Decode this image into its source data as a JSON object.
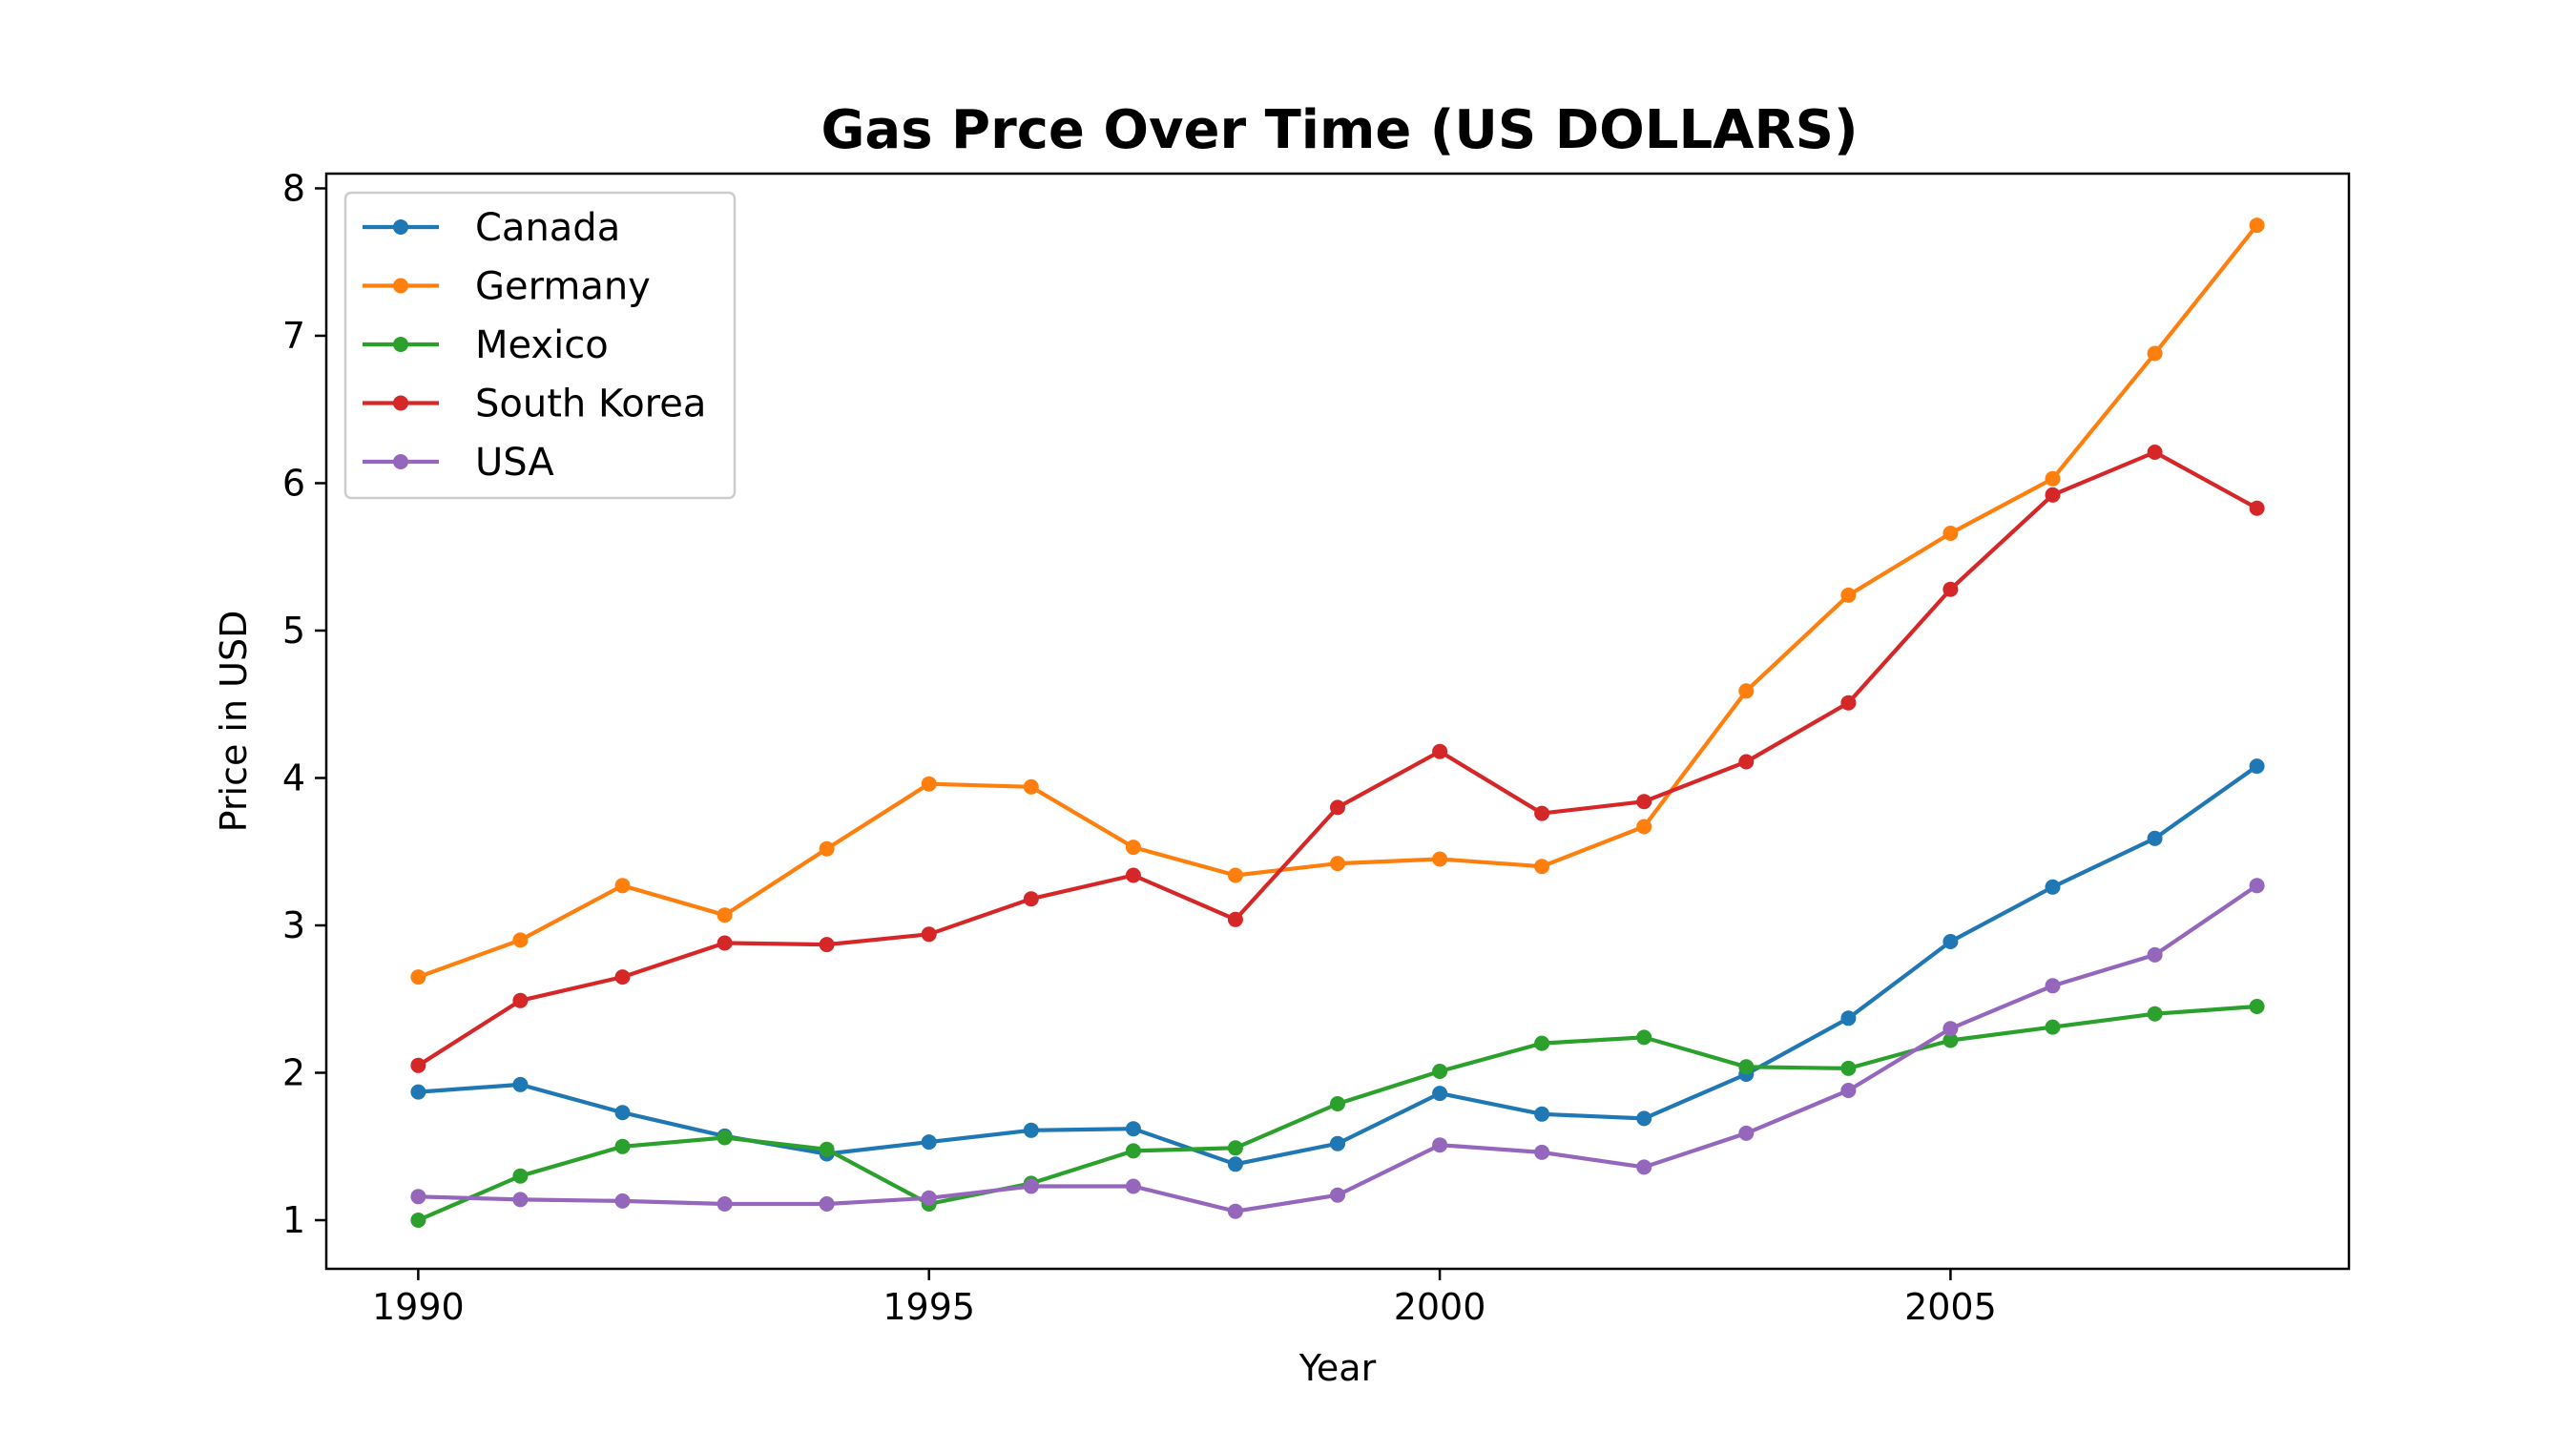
{
  "chart_data": {
    "type": "line",
    "title": "Gas Prce Over Time (US DOLLARS)",
    "xlabel": "Year",
    "ylabel": "Price in USD",
    "xlim": [
      1989.1,
      2008.9
    ],
    "ylim": [
      0.67,
      8.1
    ],
    "xticks": [
      1990,
      1995,
      2000,
      2005
    ],
    "yticks": [
      1,
      2,
      3,
      4,
      5,
      6,
      7,
      8
    ],
    "grid": false,
    "legend_position": "upper-left",
    "x": [
      1990,
      1991,
      1992,
      1993,
      1994,
      1995,
      1996,
      1997,
      1998,
      1999,
      2000,
      2001,
      2002,
      2003,
      2004,
      2005,
      2006,
      2007,
      2008
    ],
    "series": [
      {
        "name": "Canada",
        "color": "#1f77b4",
        "values": [
          1.87,
          1.92,
          1.73,
          1.57,
          1.45,
          1.53,
          1.61,
          1.62,
          1.38,
          1.52,
          1.86,
          1.72,
          1.69,
          1.99,
          2.37,
          2.89,
          3.26,
          3.59,
          4.08
        ]
      },
      {
        "name": "Germany",
        "color": "#ff7f0e",
        "values": [
          2.65,
          2.9,
          3.27,
          3.07,
          3.52,
          3.96,
          3.94,
          3.53,
          3.34,
          3.42,
          3.45,
          3.4,
          3.67,
          4.59,
          5.24,
          5.66,
          6.03,
          6.88,
          7.75
        ]
      },
      {
        "name": "Mexico",
        "color": "#2ca02c",
        "values": [
          1.0,
          1.3,
          1.5,
          1.56,
          1.48,
          1.11,
          1.25,
          1.47,
          1.49,
          1.79,
          2.01,
          2.2,
          2.24,
          2.04,
          2.03,
          2.22,
          2.31,
          2.4,
          2.45
        ]
      },
      {
        "name": "South Korea",
        "color": "#d62728",
        "values": [
          2.05,
          2.49,
          2.65,
          2.88,
          2.87,
          2.94,
          3.18,
          3.34,
          3.04,
          3.8,
          4.18,
          3.76,
          3.84,
          4.11,
          4.51,
          5.28,
          5.92,
          6.21,
          5.83
        ]
      },
      {
        "name": "USA",
        "color": "#9467bd",
        "values": [
          1.16,
          1.14,
          1.13,
          1.11,
          1.11,
          1.15,
          1.23,
          1.23,
          1.06,
          1.17,
          1.51,
          1.46,
          1.36,
          1.59,
          1.88,
          2.3,
          2.59,
          2.8,
          3.27
        ]
      }
    ]
  }
}
